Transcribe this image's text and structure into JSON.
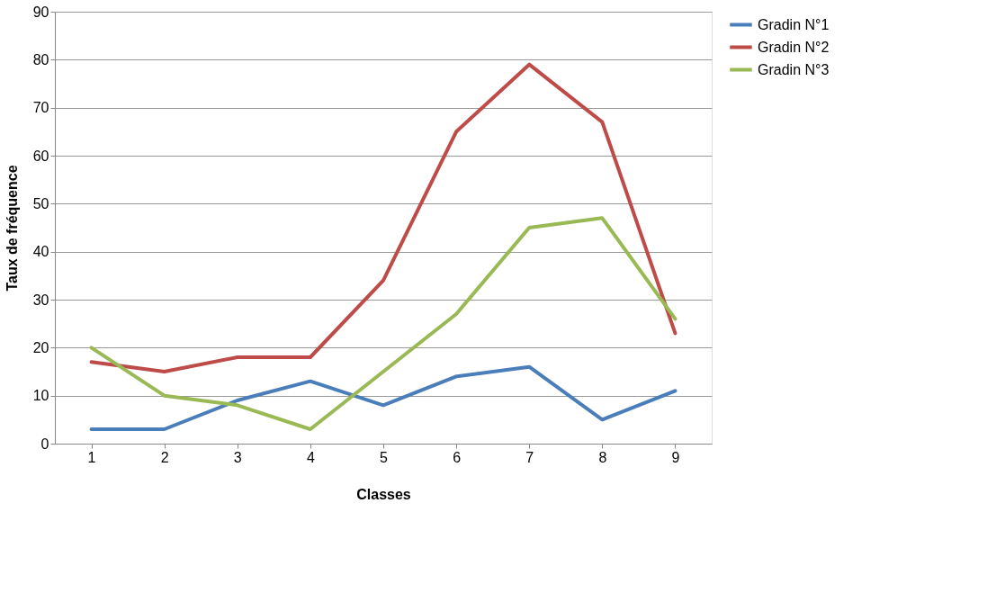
{
  "chart_data": {
    "type": "line",
    "xlabel": "Classes",
    "ylabel": "Taux de fréquence",
    "categories": [
      "1",
      "2",
      "3",
      "4",
      "5",
      "6",
      "7",
      "8",
      "9"
    ],
    "series": [
      {
        "name": "Gradin N°1",
        "color": "#4a7ebb",
        "values": [
          3,
          3,
          9,
          13,
          8,
          14,
          16,
          5,
          11
        ]
      },
      {
        "name": "Gradin N°2",
        "color": "#be4b48",
        "values": [
          17,
          15,
          18,
          18,
          34,
          65,
          79,
          67,
          23
        ]
      },
      {
        "name": "Gradin N°3",
        "color": "#98b954",
        "values": [
          20,
          10,
          8,
          3,
          15,
          27,
          45,
          47,
          26
        ]
      }
    ],
    "ylim": [
      0,
      90
    ],
    "yticks": [
      0,
      10,
      20,
      30,
      40,
      50,
      60,
      70,
      80,
      90
    ],
    "grid": "y",
    "legend": "right",
    "marker": "none",
    "line_style": "solid"
  }
}
